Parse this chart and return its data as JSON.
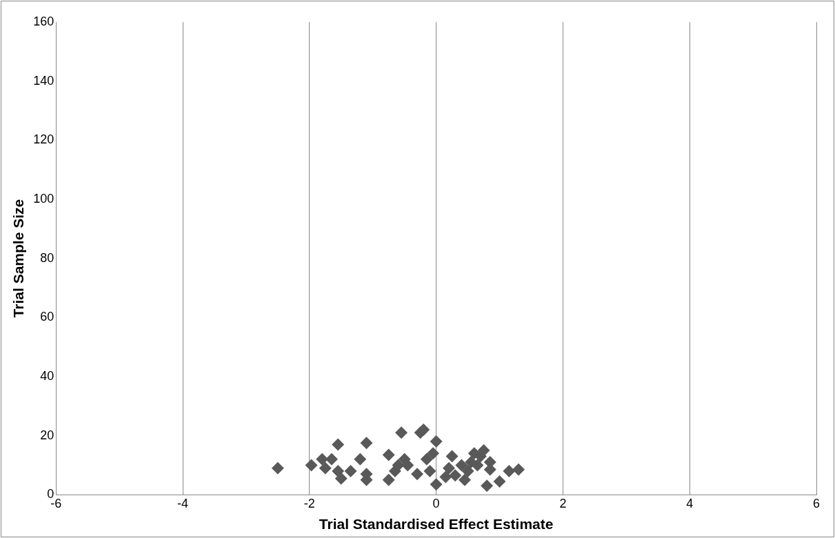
{
  "chart_data": {
    "type": "scatter",
    "xlabel": "Trial Standardised Effect Estimate",
    "ylabel": "Trial Sample Size",
    "xlim": [
      -6,
      6
    ],
    "xticks": [
      -6,
      -4,
      -2,
      0,
      2,
      4,
      6
    ],
    "ylim": [
      0,
      160
    ],
    "yticks": [
      0,
      20,
      40,
      60,
      80,
      100,
      120,
      140,
      160
    ],
    "grid": "x",
    "legend": false,
    "marker": "diamond",
    "series": [
      {
        "color": "#595959",
        "x": [
          -2.5,
          -1.97,
          -1.8,
          -1.75,
          -1.65,
          -1.55,
          -1.55,
          -1.5,
          -1.35,
          -1.2,
          -1.1,
          -1.1,
          -1.1,
          -0.75,
          -0.75,
          -0.65,
          -0.6,
          -0.55,
          -0.5,
          -0.45,
          -0.3,
          -0.25,
          -0.2,
          -0.15,
          -0.1,
          -0.05,
          0,
          0,
          0.15,
          0.2,
          0.25,
          0.3,
          0.4,
          0.45,
          0.5,
          0.55,
          0.6,
          0.65,
          0.7,
          0.75,
          0.8,
          0.85,
          0.85,
          1.0,
          1.15,
          1.3
        ],
        "values": [
          9,
          10,
          12,
          9,
          12,
          8,
          17,
          5.5,
          8,
          12,
          17.5,
          7,
          5,
          13.5,
          5,
          8,
          10,
          21,
          12,
          10,
          7,
          21,
          22,
          12,
          8,
          14,
          18,
          3.5,
          6,
          9,
          13,
          6.5,
          10,
          5,
          8,
          11,
          14,
          10,
          13,
          15,
          3,
          11,
          8.5,
          4.5,
          8,
          8.5
        ]
      }
    ]
  }
}
